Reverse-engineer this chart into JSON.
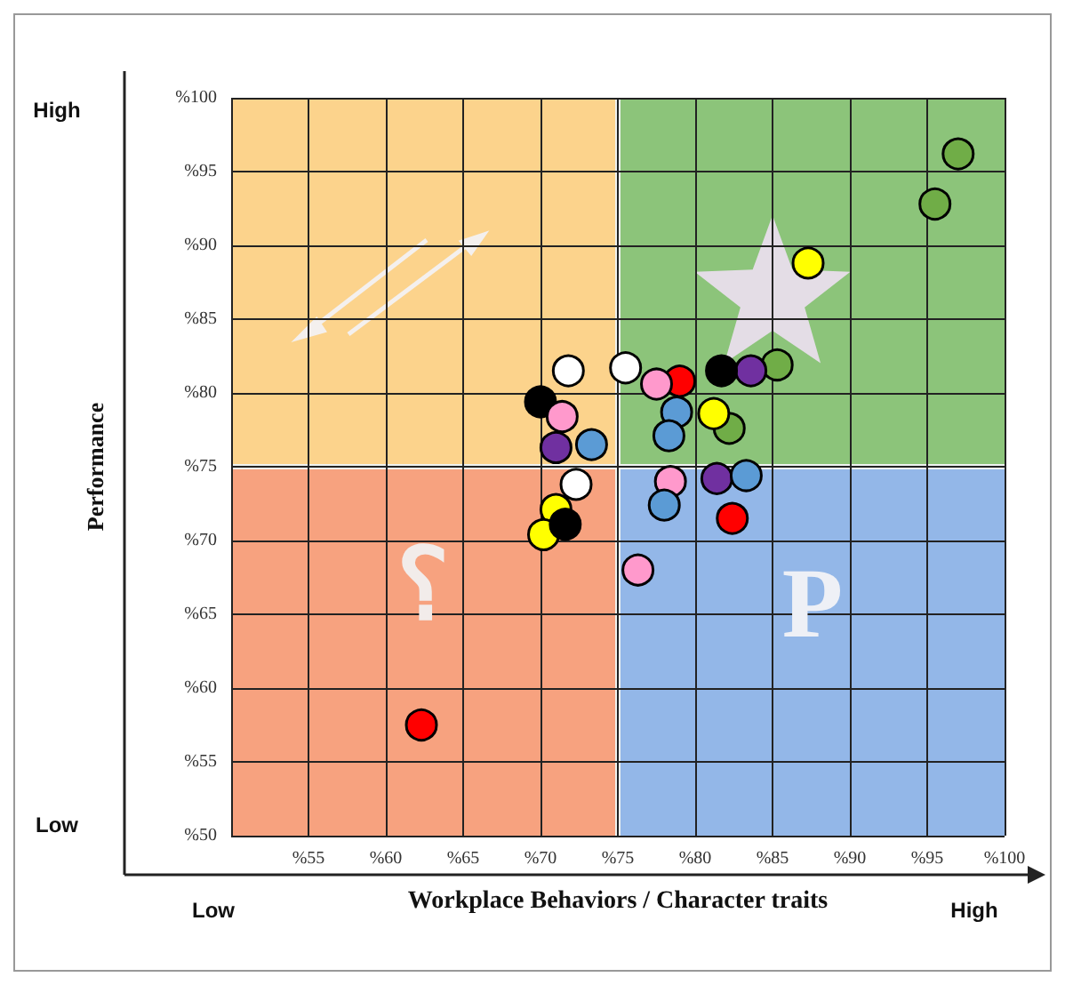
{
  "chart_data": {
    "type": "scatter",
    "xlabel": "Workplace Behaviors / Character traits",
    "ylabel": "Performance",
    "xlim": [
      50,
      100
    ],
    "ylim": [
      50,
      100
    ],
    "xticks": [
      {
        "value": 50,
        "label": null
      },
      {
        "value": 55,
        "label": "%55"
      },
      {
        "value": 60,
        "label": "%60"
      },
      {
        "value": 65,
        "label": "%65"
      },
      {
        "value": 70,
        "label": "%70"
      },
      {
        "value": 75,
        "label": "%75"
      },
      {
        "value": 80,
        "label": "%80"
      },
      {
        "value": 85,
        "label": "%85"
      },
      {
        "value": 90,
        "label": "%90"
      },
      {
        "value": 95,
        "label": "%95"
      },
      {
        "value": 100,
        "label": "%100"
      }
    ],
    "yticks": [
      {
        "value": 50,
        "label": "%50"
      },
      {
        "value": 55,
        "label": "%55"
      },
      {
        "value": 60,
        "label": "%60"
      },
      {
        "value": 65,
        "label": "%65"
      },
      {
        "value": 70,
        "label": "%70"
      },
      {
        "value": 75,
        "label": "%75"
      },
      {
        "value": 80,
        "label": "%80"
      },
      {
        "value": 85,
        "label": "%85"
      },
      {
        "value": 90,
        "label": "%90"
      },
      {
        "value": 95,
        "label": "%95"
      },
      {
        "value": 100,
        "label": "%100"
      }
    ],
    "grid": true,
    "marker": "circle",
    "annotations": [
      "High",
      "Low",
      "Low",
      "High",
      "؟",
      "P"
    ],
    "series": [
      {
        "color": "#70ad47",
        "x": [
          97,
          95.5,
          85.3,
          82.2
        ],
        "values": [
          96.2,
          92.8,
          81.9,
          77.6
        ]
      },
      {
        "color": "#ffff00",
        "x": [
          87.3,
          81.2,
          71,
          70.2
        ],
        "values": [
          88.8,
          78.6,
          72.1,
          70.4
        ]
      },
      {
        "color": "#7030a0",
        "x": [
          83.6,
          71,
          81.4
        ],
        "values": [
          81.5,
          76.3,
          74.2
        ]
      },
      {
        "color": "#000000",
        "x": [
          81.7,
          70,
          71.6
        ],
        "values": [
          81.5,
          79.4,
          71.1
        ]
      },
      {
        "color": "#ff0000",
        "x": [
          79,
          82.4,
          62.3
        ],
        "values": [
          80.8,
          71.5,
          57.5
        ]
      },
      {
        "color": "#ff99cc",
        "x": [
          77.5,
          71.4,
          78.4,
          76.3
        ],
        "values": [
          80.6,
          78.4,
          74,
          68
        ]
      },
      {
        "color": "#ffffff",
        "x": [
          75.5,
          71.8,
          72.3
        ],
        "values": [
          81.7,
          81.5,
          73.8
        ]
      },
      {
        "color": "#5b9bd5",
        "x": [
          78.8,
          78.3,
          73.3,
          78,
          83.3
        ],
        "values": [
          78.7,
          77.1,
          76.5,
          72.4,
          74.4
        ]
      }
    ]
  }
}
